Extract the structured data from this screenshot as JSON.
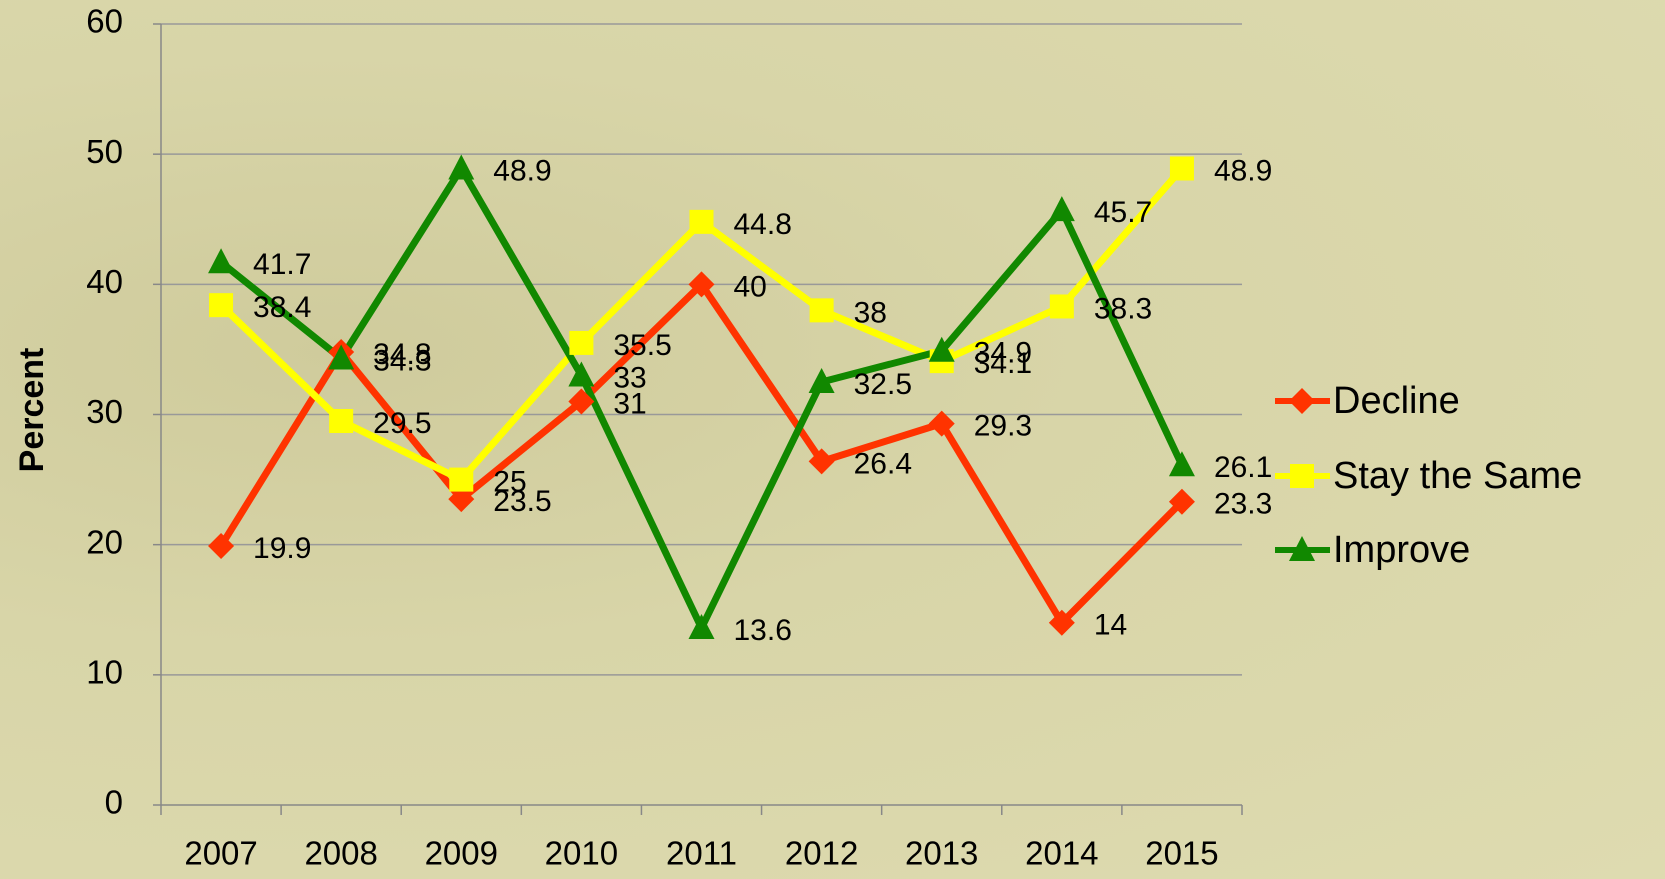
{
  "chart_data": {
    "type": "line",
    "y_label": "Percent",
    "categories": [
      "2007",
      "2008",
      "2009",
      "2010",
      "2011",
      "2012",
      "2013",
      "2014",
      "2015"
    ],
    "series": [
      {
        "name": "Decline",
        "color": "#ff3300",
        "marker": "diamond",
        "values": [
          19.9,
          34.8,
          23.5,
          31,
          40,
          26.4,
          29.3,
          14,
          23.3
        ]
      },
      {
        "name": "Stay the Same",
        "color": "#ffff00",
        "marker": "square",
        "values": [
          38.4,
          29.5,
          25,
          35.5,
          44.8,
          38,
          34.1,
          38.3,
          48.9
        ]
      },
      {
        "name": "Improve",
        "color": "#118800",
        "marker": "triangle",
        "values": [
          41.7,
          34.3,
          48.9,
          33,
          13.6,
          32.5,
          34.9,
          45.7,
          26.1
        ]
      }
    ],
    "ylim": [
      0,
      60
    ],
    "yticks": [
      0,
      10,
      20,
      30,
      40,
      50,
      60
    ],
    "grid": true,
    "legend": "right"
  }
}
